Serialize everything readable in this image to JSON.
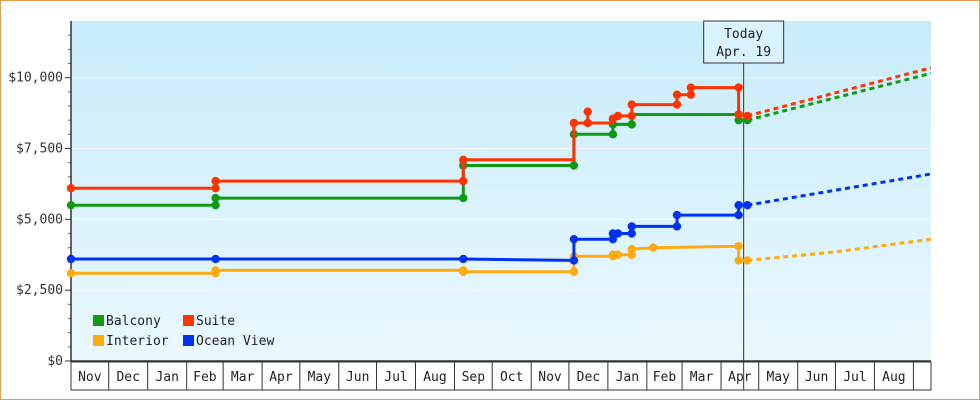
{
  "chart_data": {
    "type": "line",
    "step": true,
    "xlabel": "",
    "ylabel": "",
    "ylim": [
      0,
      12000
    ],
    "y_ticks": [
      {
        "value": 0,
        "label": "$0"
      },
      {
        "value": 2500,
        "label": "$2,500"
      },
      {
        "value": 5000,
        "label": "$5,000"
      },
      {
        "value": 7500,
        "label": "$7,500"
      },
      {
        "value": 10000,
        "label": "$10,000"
      }
    ],
    "x_start": "2023-11-01",
    "x_end": "2025-09-15",
    "month_labels": [
      {
        "label": "Nov",
        "date": "2023-11-01"
      },
      {
        "label": "Dec",
        "date": "2023-12-01"
      },
      {
        "label": "Jan",
        "date": "2024-01-01"
      },
      {
        "label": "Feb",
        "date": "2024-02-01"
      },
      {
        "label": "Mar",
        "date": "2024-03-01"
      },
      {
        "label": "Apr",
        "date": "2024-04-01"
      },
      {
        "label": "May",
        "date": "2024-05-01"
      },
      {
        "label": "Jun",
        "date": "2024-06-01"
      },
      {
        "label": "Jul",
        "date": "2024-07-01"
      },
      {
        "label": "Aug",
        "date": "2024-08-01"
      },
      {
        "label": "Sep",
        "date": "2024-09-01"
      },
      {
        "label": "Oct",
        "date": "2024-10-01"
      },
      {
        "label": "Nov",
        "date": "2024-11-01"
      },
      {
        "label": "Dec",
        "date": "2024-12-01"
      },
      {
        "label": "Jan",
        "date": "2025-01-01"
      },
      {
        "label": "Feb",
        "date": "2025-02-01"
      },
      {
        "label": "Mar",
        "date": "2025-03-01"
      },
      {
        "label": "Apr",
        "date": "2025-04-01"
      },
      {
        "label": "May",
        "date": "2025-05-01"
      },
      {
        "label": "Jun",
        "date": "2025-06-01"
      },
      {
        "label": "Jul",
        "date": "2025-07-01"
      },
      {
        "label": "Aug",
        "date": "2025-08-01"
      },
      {
        "label": "",
        "date": "2025-09-01"
      }
    ],
    "today": {
      "date": "2025-04-19",
      "label_line1": "Today",
      "label_line2": "Apr. 19"
    },
    "series": [
      {
        "name": "Suite",
        "color": "#ff3300",
        "points": [
          {
            "x": "2023-11-01",
            "y": 6100
          },
          {
            "x": "2024-02-24",
            "y": 6100
          },
          {
            "x": "2024-02-24",
            "y": 6350
          },
          {
            "x": "2024-09-08",
            "y": 6350
          },
          {
            "x": "2024-09-08",
            "y": 7100
          },
          {
            "x": "2024-12-05",
            "y": 7100
          },
          {
            "x": "2024-12-05",
            "y": 8400
          },
          {
            "x": "2024-12-16",
            "y": 8400
          },
          {
            "x": "2024-12-16",
            "y": 8800
          },
          {
            "x": "2024-12-16",
            "y": 8400
          },
          {
            "x": "2025-01-05",
            "y": 8400
          },
          {
            "x": "2025-01-05",
            "y": 8550
          },
          {
            "x": "2025-01-09",
            "y": 8550
          },
          {
            "x": "2025-01-09",
            "y": 8650
          },
          {
            "x": "2025-01-20",
            "y": 8650
          },
          {
            "x": "2025-01-20",
            "y": 9050
          },
          {
            "x": "2025-02-25",
            "y": 9050
          },
          {
            "x": "2025-02-25",
            "y": 9400
          },
          {
            "x": "2025-03-08",
            "y": 9400
          },
          {
            "x": "2025-03-08",
            "y": 9650
          },
          {
            "x": "2025-04-15",
            "y": 9650
          },
          {
            "x": "2025-04-15",
            "y": 8700
          },
          {
            "x": "2025-04-22",
            "y": 8650
          }
        ],
        "projection": [
          {
            "x": "2025-04-22",
            "y": 8650
          },
          {
            "x": "2025-09-15",
            "y": 10350
          }
        ]
      },
      {
        "name": "Balcony",
        "color": "#119911",
        "points": [
          {
            "x": "2023-11-01",
            "y": 5500
          },
          {
            "x": "2024-02-24",
            "y": 5500
          },
          {
            "x": "2024-02-24",
            "y": 5750
          },
          {
            "x": "2024-09-08",
            "y": 5750
          },
          {
            "x": "2024-09-08",
            "y": 6900
          },
          {
            "x": "2024-12-05",
            "y": 6900
          },
          {
            "x": "2024-12-05",
            "y": 8000
          },
          {
            "x": "2025-01-05",
            "y": 8000
          },
          {
            "x": "2025-01-05",
            "y": 8350
          },
          {
            "x": "2025-01-20",
            "y": 8350
          },
          {
            "x": "2025-01-20",
            "y": 8700
          },
          {
            "x": "2025-04-15",
            "y": 8700
          },
          {
            "x": "2025-04-15",
            "y": 8500
          },
          {
            "x": "2025-04-22",
            "y": 8500
          }
        ],
        "projection": [
          {
            "x": "2025-04-22",
            "y": 8500
          },
          {
            "x": "2025-09-15",
            "y": 10150
          }
        ]
      },
      {
        "name": "Ocean View",
        "color": "#0033ee",
        "points": [
          {
            "x": "2023-11-01",
            "y": 3600
          },
          {
            "x": "2024-02-24",
            "y": 3600
          },
          {
            "x": "2024-09-08",
            "y": 3600
          },
          {
            "x": "2024-12-05",
            "y": 3550
          },
          {
            "x": "2024-12-05",
            "y": 4300
          },
          {
            "x": "2025-01-05",
            "y": 4300
          },
          {
            "x": "2025-01-05",
            "y": 4500
          },
          {
            "x": "2025-01-09",
            "y": 4500
          },
          {
            "x": "2025-01-20",
            "y": 4500
          },
          {
            "x": "2025-01-20",
            "y": 4750
          },
          {
            "x": "2025-02-25",
            "y": 4750
          },
          {
            "x": "2025-02-25",
            "y": 5150
          },
          {
            "x": "2025-04-15",
            "y": 5150
          },
          {
            "x": "2025-04-15",
            "y": 5500
          },
          {
            "x": "2025-04-22",
            "y": 5500
          }
        ],
        "projection": [
          {
            "x": "2025-04-22",
            "y": 5500
          },
          {
            "x": "2025-09-15",
            "y": 6600
          }
        ]
      },
      {
        "name": "Interior",
        "color": "#ffaa11",
        "points": [
          {
            "x": "2023-11-01",
            "y": 3100
          },
          {
            "x": "2024-02-24",
            "y": 3100
          },
          {
            "x": "2024-02-24",
            "y": 3200
          },
          {
            "x": "2024-09-08",
            "y": 3200
          },
          {
            "x": "2024-09-08",
            "y": 3150
          },
          {
            "x": "2024-12-05",
            "y": 3150
          },
          {
            "x": "2024-12-05",
            "y": 3700
          },
          {
            "x": "2025-01-05",
            "y": 3700
          },
          {
            "x": "2025-01-05",
            "y": 3750
          },
          {
            "x": "2025-01-09",
            "y": 3750
          },
          {
            "x": "2025-01-20",
            "y": 3750
          },
          {
            "x": "2025-01-20",
            "y": 3950
          },
          {
            "x": "2025-02-06",
            "y": 4000
          },
          {
            "x": "2025-04-15",
            "y": 4050
          },
          {
            "x": "2025-04-15",
            "y": 3550
          },
          {
            "x": "2025-04-22",
            "y": 3550
          }
        ],
        "projection": [
          {
            "x": "2025-04-22",
            "y": 3550
          },
          {
            "x": "2025-07-01",
            "y": 3850
          },
          {
            "x": "2025-09-15",
            "y": 4300
          }
        ]
      }
    ],
    "markers": {
      "Suite": [
        "2023-11-01|6100",
        "2024-02-24|6100",
        "2024-02-24|6350",
        "2024-09-08|6350",
        "2024-09-08|7100",
        "2024-12-05|8400",
        "2024-12-16|8800",
        "2024-12-16|8400",
        "2025-01-05|8550",
        "2025-01-09|8650",
        "2025-01-20|8650",
        "2025-01-20|9050",
        "2025-02-25|9050",
        "2025-02-25|9400",
        "2025-03-08|9400",
        "2025-03-08|9650",
        "2025-04-15|9650",
        "2025-04-15|8700",
        "2025-04-22|8650"
      ],
      "Balcony": [
        "2023-11-01|5500",
        "2024-02-24|5500",
        "2024-02-24|5750",
        "2024-09-08|5750",
        "2024-09-08|6900",
        "2024-12-05|6900",
        "2024-12-05|8000",
        "2025-01-05|8000",
        "2025-01-05|8350",
        "2025-01-20|8350",
        "2025-04-15|8500",
        "2025-04-22|8500"
      ],
      "Ocean View": [
        "2023-11-01|3600",
        "2024-02-24|3600",
        "2024-09-08|3600",
        "2024-12-05|3550",
        "2024-12-05|4300",
        "2025-01-05|4300",
        "2025-01-05|4500",
        "2025-01-09|4500",
        "2025-01-20|4500",
        "2025-01-20|4750",
        "2025-02-25|4750",
        "2025-02-25|5150",
        "2025-04-15|5150",
        "2025-04-15|5500",
        "2025-04-22|5500"
      ],
      "Interior": [
        "2023-11-01|3100",
        "2024-02-24|3100",
        "2024-02-24|3200",
        "2024-09-08|3200",
        "2024-09-08|3150",
        "2024-12-05|3150",
        "2024-12-05|3700",
        "2025-01-05|3700",
        "2025-01-05|3750",
        "2025-01-09|3750",
        "2025-01-20|3750",
        "2025-01-20|3950",
        "2025-02-06|4000",
        "2025-04-15|4050",
        "2025-04-15|3550",
        "2025-04-22|3550"
      ]
    },
    "legend": {
      "placement": "bottom-left",
      "entries": [
        {
          "name": "Balcony",
          "color": "#119911"
        },
        {
          "name": "Suite",
          "color": "#ff3300"
        },
        {
          "name": "Interior",
          "color": "#ffaa11"
        },
        {
          "name": "Ocean View",
          "color": "#0033ee"
        }
      ]
    },
    "grid": true,
    "background_gradient": [
      "#c8ecfa",
      "#eaf8fe"
    ]
  }
}
